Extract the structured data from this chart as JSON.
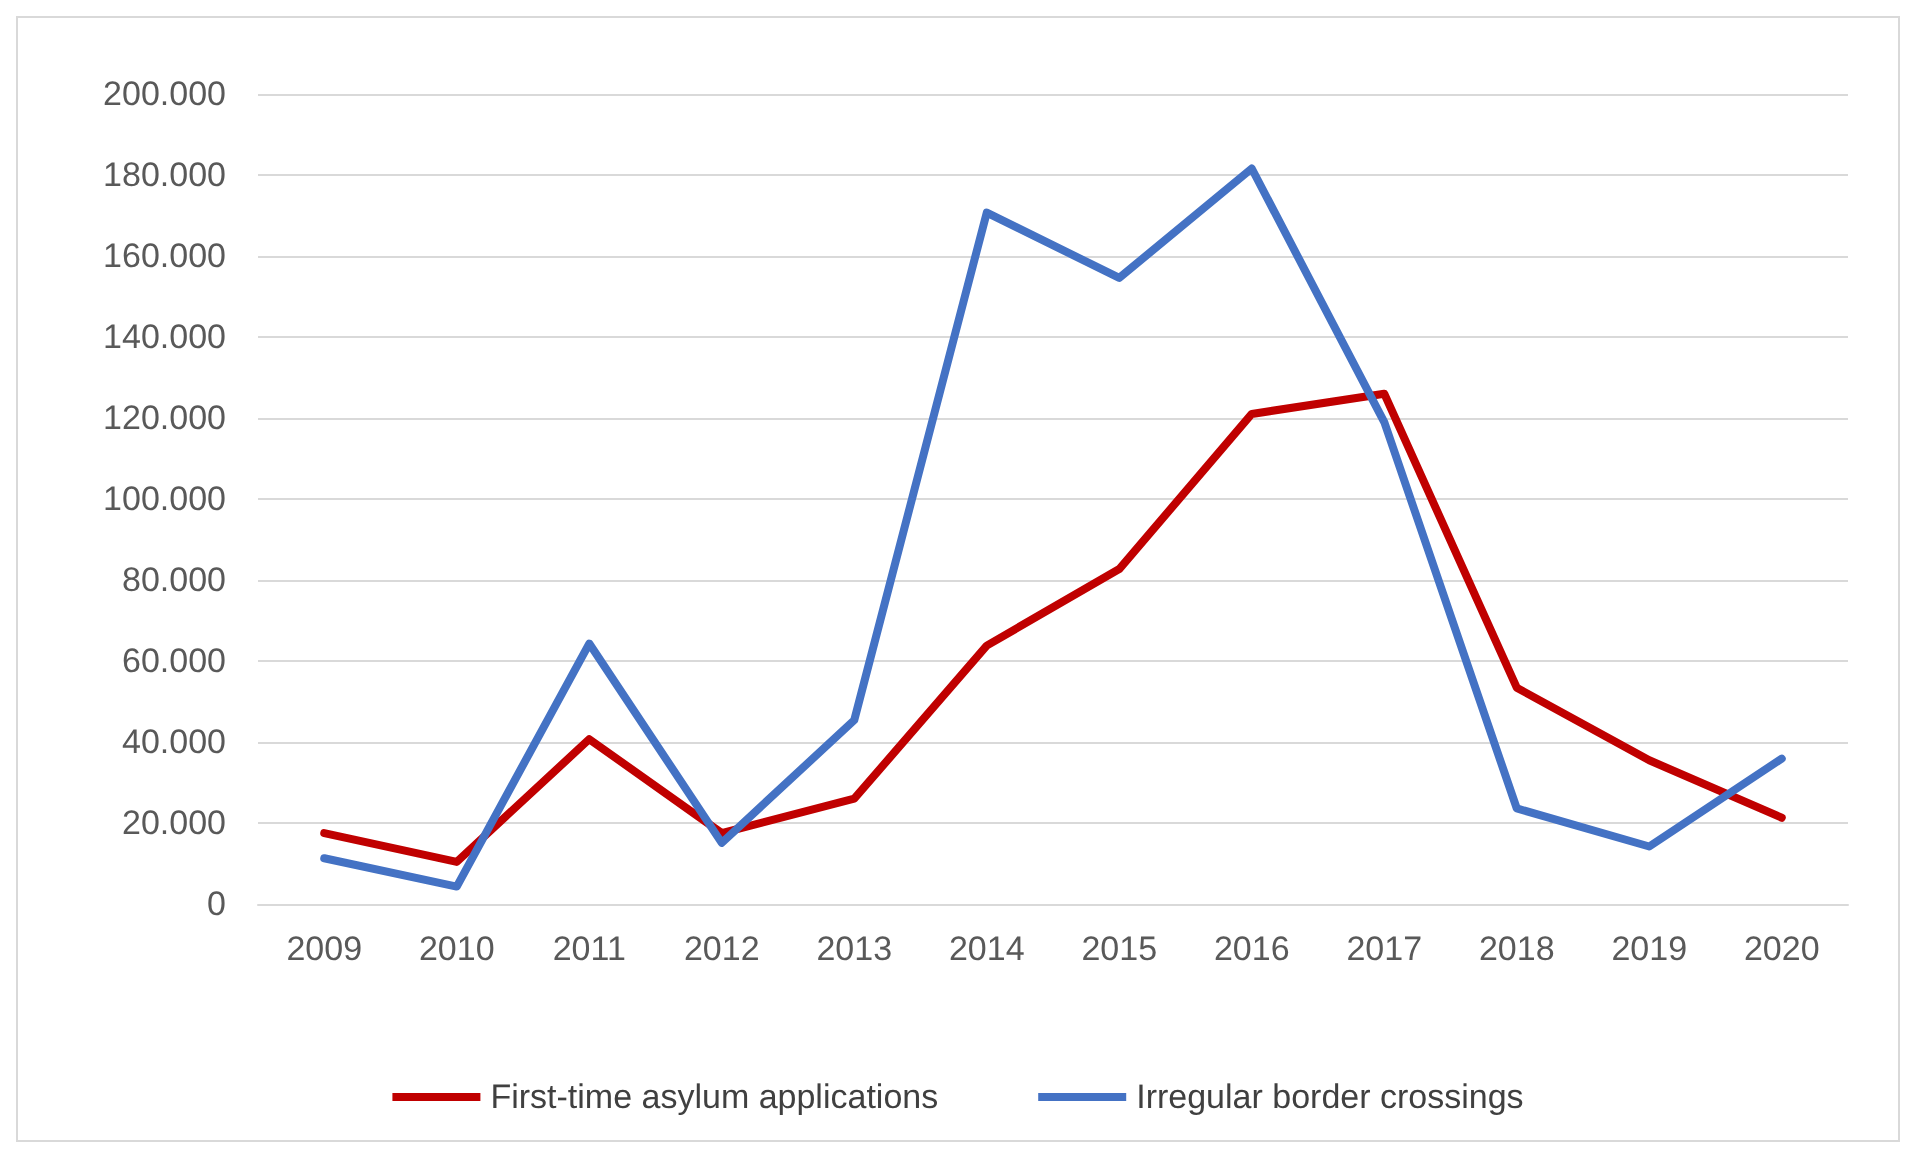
{
  "chart_data": {
    "type": "line",
    "categories": [
      "2009",
      "2010",
      "2011",
      "2012",
      "2013",
      "2014",
      "2015",
      "2016",
      "2017",
      "2018",
      "2019",
      "2020"
    ],
    "series": [
      {
        "name": "First-time asylum applications",
        "color": "#c00000",
        "values": [
          17500,
          10400,
          40700,
          17500,
          26000,
          63800,
          82700,
          121000,
          126000,
          53400,
          35500,
          21300
        ]
      },
      {
        "name": "Irregular border crossings",
        "color": "#4472c4",
        "values": [
          11300,
          4300,
          64300,
          15100,
          45400,
          170700,
          154600,
          181600,
          119000,
          23600,
          14200,
          35900
        ]
      }
    ],
    "ylim": [
      0,
      200000
    ],
    "yticks": [
      {
        "value": 0,
        "label": "0"
      },
      {
        "value": 20000,
        "label": "20.000"
      },
      {
        "value": 40000,
        "label": "40.000"
      },
      {
        "value": 60000,
        "label": "60.000"
      },
      {
        "value": 80000,
        "label": "80.000"
      },
      {
        "value": 100000,
        "label": "100.000"
      },
      {
        "value": 120000,
        "label": "120.000"
      },
      {
        "value": 140000,
        "label": "140.000"
      },
      {
        "value": 160000,
        "label": "160.000"
      },
      {
        "value": 180000,
        "label": "180.000"
      },
      {
        "value": 200000,
        "label": "200.000"
      }
    ],
    "grid": "y",
    "legend": "bottom",
    "marker": "none",
    "line_style": "solid"
  }
}
